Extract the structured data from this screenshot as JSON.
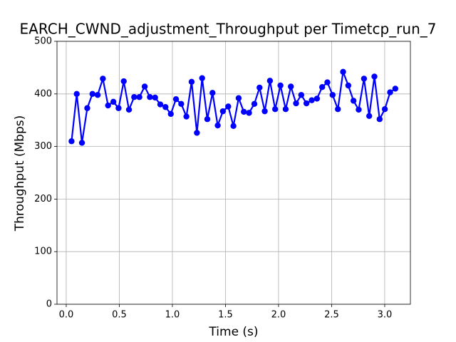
{
  "chart_data": {
    "type": "line",
    "title": "EARCH_CWND_adjustment_Throughput per Timetcp_run_7",
    "x_label": "Time (s)",
    "y_label": "Throughput (Mbps)",
    "x": [
      0.05,
      0.099,
      0.148,
      0.198,
      0.247,
      0.296,
      0.345,
      0.394,
      0.444,
      0.493,
      0.542,
      0.591,
      0.64,
      0.689,
      0.739,
      0.788,
      0.837,
      0.886,
      0.935,
      0.985,
      1.034,
      1.083,
      1.132,
      1.181,
      1.231,
      1.28,
      1.329,
      1.378,
      1.427,
      1.476,
      1.526,
      1.575,
      1.624,
      1.673,
      1.722,
      1.772,
      1.821,
      1.87,
      1.919,
      1.968,
      2.018,
      2.067,
      2.116,
      2.165,
      2.214,
      2.263,
      2.313,
      2.362,
      2.411,
      2.46,
      2.509,
      2.559,
      2.608,
      2.657,
      2.706,
      2.755,
      2.805,
      2.854,
      2.903,
      2.952,
      3.001,
      3.051,
      3.1
    ],
    "series": [
      {
        "color": "#0000ff",
        "values": [
          310,
          400,
          307,
          373,
          400,
          398,
          429,
          378,
          385,
          373,
          424,
          370,
          394,
          394,
          414,
          394,
          393,
          380,
          375,
          362,
          390,
          381,
          357,
          423,
          326,
          430,
          352,
          402,
          340,
          367,
          376,
          339,
          392,
          366,
          364,
          381,
          412,
          367,
          425,
          371,
          416,
          371,
          414,
          382,
          398,
          382,
          388,
          391,
          413,
          422,
          398,
          371,
          442,
          416,
          387,
          370,
          429,
          358,
          433,
          352,
          371,
          403,
          410
        ]
      }
    ],
    "xlim": [
      -0.087,
      3.242
    ],
    "xticks": [
      {
        "value": 0,
        "label": "0.0"
      },
      0.5,
      {
        "value": 1,
        "label": "1.0"
      },
      1.5,
      {
        "value": 2,
        "label": "2.0"
      },
      2.5,
      {
        "value": 3,
        "label": "3.0"
      }
    ],
    "ylim": [
      0,
      500
    ],
    "yticks": [
      0,
      100,
      200,
      300,
      400,
      500
    ],
    "grid": true
  }
}
